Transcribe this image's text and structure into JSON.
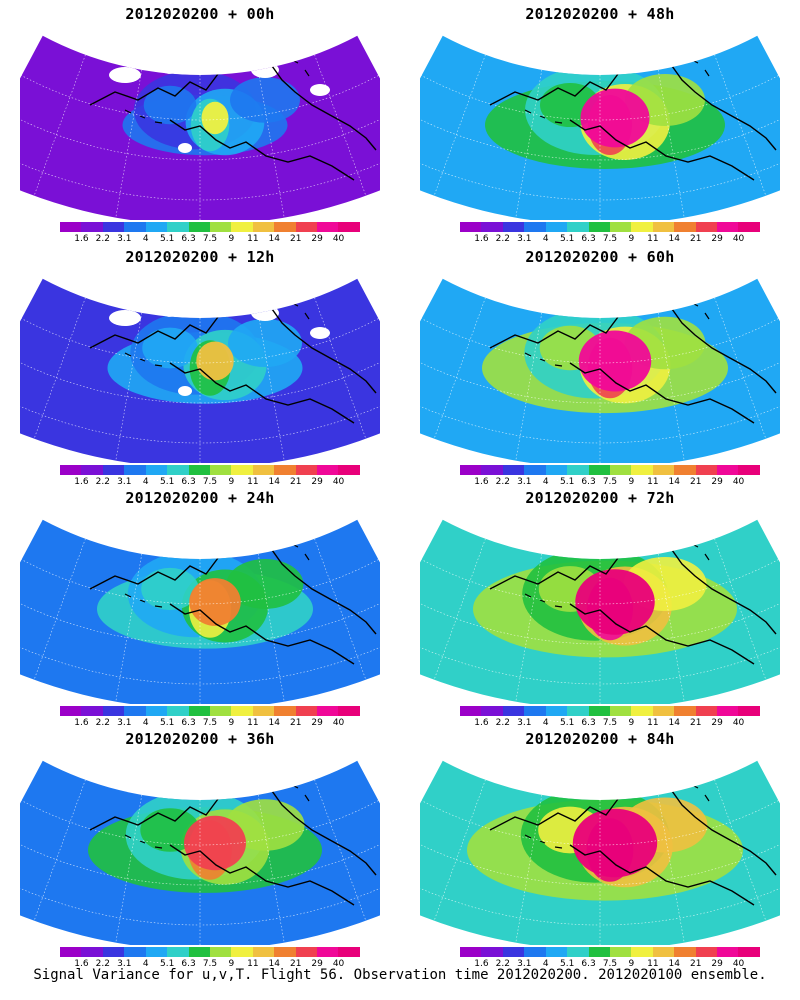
{
  "panels": [
    {
      "title": "2012020200 + 00h",
      "intensity": 0.1,
      "coverage": 0.55
    },
    {
      "title": "2012020200 + 48h",
      "intensity": 0.7,
      "coverage": 0.8
    },
    {
      "title": "2012020200 + 12h",
      "intensity": 0.25,
      "coverage": 0.65
    },
    {
      "title": "2012020200 + 60h",
      "intensity": 0.75,
      "coverage": 0.82
    },
    {
      "title": "2012020200 + 24h",
      "intensity": 0.45,
      "coverage": 0.72
    },
    {
      "title": "2012020200 + 72h",
      "intensity": 0.85,
      "coverage": 0.88
    },
    {
      "title": "2012020200 + 36h",
      "intensity": 0.6,
      "coverage": 0.78
    },
    {
      "title": "2012020200 + 84h",
      "intensity": 0.92,
      "coverage": 0.92
    }
  ],
  "colorbar": {
    "labels": [
      "1.6",
      "2.2",
      "3.1",
      "4",
      "5.1",
      "6.3",
      "7.5",
      "9",
      "11",
      "14",
      "21",
      "29",
      "40"
    ],
    "colors": [
      "#9b00c8",
      "#7a10d6",
      "#3a35e0",
      "#1e78f0",
      "#20a8f4",
      "#30d0c8",
      "#20c040",
      "#a0e040",
      "#f0f040",
      "#f0c040",
      "#f08030",
      "#f04050",
      "#f00898",
      "#e8007a"
    ]
  },
  "caption": "Signal Variance for u,v,T. Flight 56. Observation time 2012020200. 2012020100 ensemble."
}
